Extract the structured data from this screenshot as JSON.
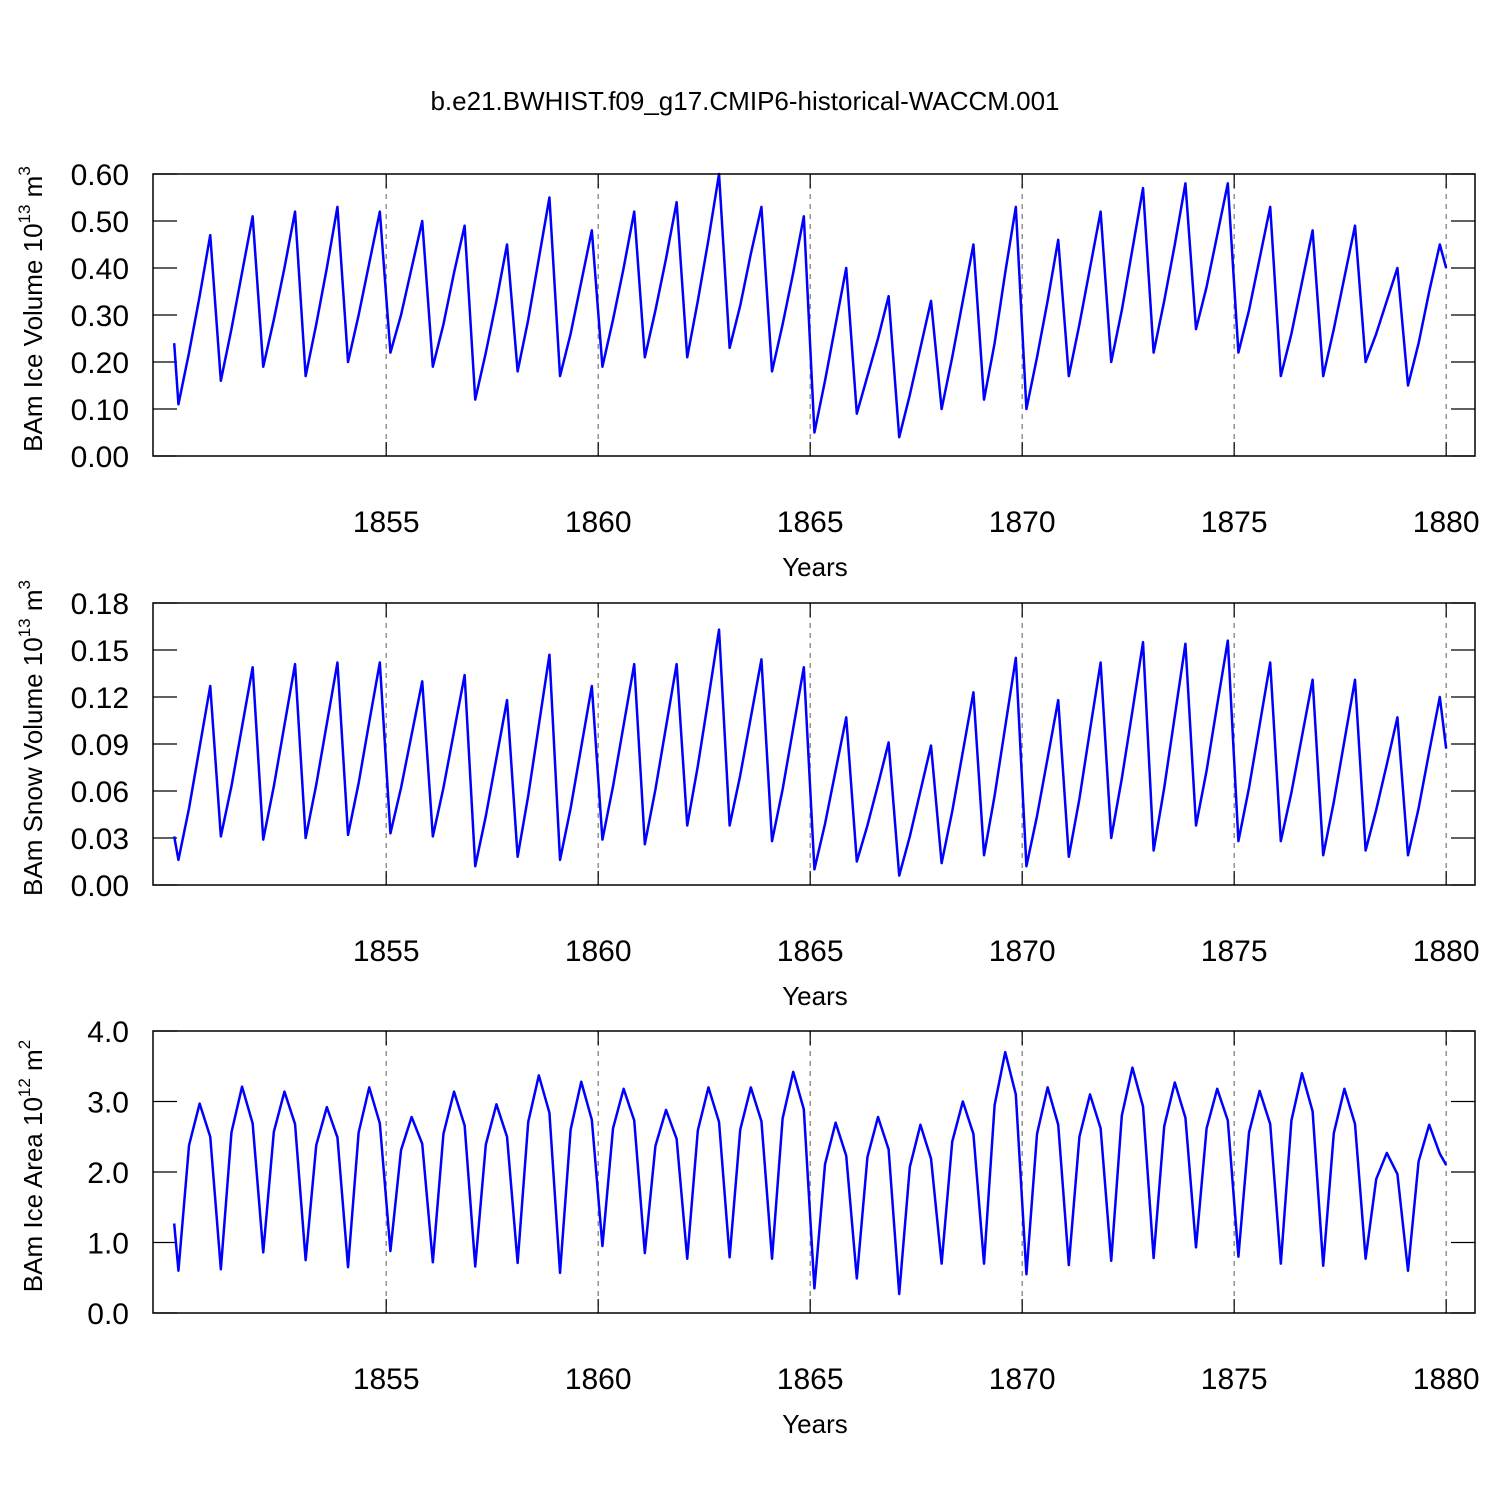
{
  "title": "b.e21.BWHIST.f09_g17.CMIP6-historical-WACCM.001",
  "chart_data": [
    {
      "type": "line",
      "ylabel": [
        "BAm Ice Volume 10",
        "13",
        " m",
        "3"
      ],
      "xlabel": "Years",
      "x": [
        1850,
        1850.1,
        1850.35,
        1850.6,
        1850.85,
        1851.1,
        1851.35,
        1851.6,
        1851.85,
        1852.1,
        1852.35,
        1852.6,
        1852.85,
        1853.1,
        1853.35,
        1853.6,
        1853.85,
        1854.1,
        1854.35,
        1854.6,
        1854.85,
        1855.1,
        1855.35,
        1855.6,
        1855.85,
        1856.1,
        1856.35,
        1856.6,
        1856.85,
        1857.1,
        1857.35,
        1857.6,
        1857.85,
        1858.1,
        1858.35,
        1858.6,
        1858.85,
        1859.1,
        1859.35,
        1859.6,
        1859.85,
        1860.1,
        1860.35,
        1860.6,
        1860.85,
        1861.1,
        1861.35,
        1861.6,
        1861.85,
        1862.1,
        1862.35,
        1862.6,
        1862.85,
        1863.1,
        1863.35,
        1863.6,
        1863.85,
        1864.1,
        1864.35,
        1864.6,
        1864.85,
        1865.1,
        1865.35,
        1865.6,
        1865.85,
        1866.1,
        1866.35,
        1866.6,
        1866.85,
        1867.1,
        1867.35,
        1867.6,
        1867.85,
        1868.1,
        1868.35,
        1868.6,
        1868.85,
        1869.1,
        1869.35,
        1869.6,
        1869.85,
        1870.1,
        1870.35,
        1870.6,
        1870.85,
        1871.1,
        1871.35,
        1871.6,
        1871.85,
        1872.1,
        1872.35,
        1872.6,
        1872.85,
        1873.1,
        1873.35,
        1873.6,
        1873.85,
        1874.1,
        1874.35,
        1874.6,
        1874.85,
        1875.1,
        1875.35,
        1875.6,
        1875.85,
        1876.1,
        1876.35,
        1876.6,
        1876.85,
        1877.1,
        1877.35,
        1877.6,
        1877.85,
        1878.1,
        1878.35,
        1878.6,
        1878.85,
        1879.1,
        1879.35,
        1879.6,
        1879.85,
        1880
      ],
      "series": [
        {
          "color": "#0000ff",
          "values": [
            0.24,
            0.11,
            0.22,
            0.34,
            0.47,
            0.16,
            0.27,
            0.39,
            0.51,
            0.19,
            0.29,
            0.4,
            0.52,
            0.17,
            0.28,
            0.4,
            0.53,
            0.2,
            0.3,
            0.41,
            0.52,
            0.22,
            0.3,
            0.4,
            0.5,
            0.19,
            0.28,
            0.39,
            0.49,
            0.12,
            0.22,
            0.33,
            0.45,
            0.18,
            0.29,
            0.42,
            0.55,
            0.17,
            0.26,
            0.37,
            0.48,
            0.19,
            0.29,
            0.4,
            0.52,
            0.21,
            0.31,
            0.42,
            0.54,
            0.21,
            0.33,
            0.46,
            0.6,
            0.23,
            0.32,
            0.43,
            0.53,
            0.18,
            0.28,
            0.39,
            0.51,
            0.05,
            0.16,
            0.28,
            0.4,
            0.09,
            0.17,
            0.25,
            0.34,
            0.04,
            0.13,
            0.23,
            0.33,
            0.1,
            0.21,
            0.33,
            0.45,
            0.12,
            0.24,
            0.39,
            0.53,
            0.1,
            0.21,
            0.33,
            0.46,
            0.17,
            0.28,
            0.4,
            0.52,
            0.2,
            0.31,
            0.44,
            0.57,
            0.22,
            0.33,
            0.45,
            0.58,
            0.27,
            0.36,
            0.47,
            0.58,
            0.22,
            0.31,
            0.42,
            0.53,
            0.17,
            0.26,
            0.37,
            0.48,
            0.17,
            0.27,
            0.38,
            0.49,
            0.2,
            0.26,
            0.33,
            0.4,
            0.15,
            0.24,
            0.35,
            0.45,
            0.4
          ]
        }
      ],
      "xlim": [
        1849.5,
        1880.68
      ],
      "xticks": [
        1855,
        1860,
        1865,
        1870,
        1875,
        1880
      ],
      "ylim": [
        0,
        0.6
      ],
      "yticks": [
        {
          "value": 0,
          "label": "0.00"
        },
        {
          "value": 0.1,
          "label": "0.10"
        },
        {
          "value": 0.2,
          "label": "0.20"
        },
        {
          "value": 0.3,
          "label": "0.30"
        },
        {
          "value": 0.4,
          "label": "0.40"
        },
        {
          "value": 0.5,
          "label": "0.50"
        },
        {
          "value": 0.6,
          "label": "0.60"
        }
      ],
      "grid": "x"
    },
    {
      "type": "line",
      "ylabel": [
        "BAm Snow Volume 10",
        "13",
        " m",
        "3"
      ],
      "xlabel": "Years",
      "x": [
        1850,
        1850.1,
        1850.35,
        1850.6,
        1850.85,
        1851.1,
        1851.35,
        1851.6,
        1851.85,
        1852.1,
        1852.35,
        1852.6,
        1852.85,
        1853.1,
        1853.35,
        1853.6,
        1853.85,
        1854.1,
        1854.35,
        1854.6,
        1854.85,
        1855.1,
        1855.35,
        1855.6,
        1855.85,
        1856.1,
        1856.35,
        1856.6,
        1856.85,
        1857.1,
        1857.35,
        1857.6,
        1857.85,
        1858.1,
        1858.35,
        1858.6,
        1858.85,
        1859.1,
        1859.35,
        1859.6,
        1859.85,
        1860.1,
        1860.35,
        1860.6,
        1860.85,
        1861.1,
        1861.35,
        1861.6,
        1861.85,
        1862.1,
        1862.35,
        1862.6,
        1862.85,
        1863.1,
        1863.35,
        1863.6,
        1863.85,
        1864.1,
        1864.35,
        1864.6,
        1864.85,
        1865.1,
        1865.35,
        1865.6,
        1865.85,
        1866.1,
        1866.35,
        1866.6,
        1866.85,
        1867.1,
        1867.35,
        1867.6,
        1867.85,
        1868.1,
        1868.35,
        1868.6,
        1868.85,
        1869.1,
        1869.35,
        1869.6,
        1869.85,
        1870.1,
        1870.35,
        1870.6,
        1870.85,
        1871.1,
        1871.35,
        1871.6,
        1871.85,
        1872.1,
        1872.35,
        1872.6,
        1872.85,
        1873.1,
        1873.35,
        1873.6,
        1873.85,
        1874.1,
        1874.35,
        1874.6,
        1874.85,
        1875.1,
        1875.35,
        1875.6,
        1875.85,
        1876.1,
        1876.35,
        1876.6,
        1876.85,
        1877.1,
        1877.35,
        1877.6,
        1877.85,
        1878.1,
        1878.35,
        1878.6,
        1878.85,
        1879.1,
        1879.35,
        1879.6,
        1879.85,
        1880
      ],
      "series": [
        {
          "color": "#0000ff",
          "values": [
            0.031,
            0.016,
            0.049,
            0.088,
            0.127,
            0.031,
            0.063,
            0.101,
            0.139,
            0.029,
            0.063,
            0.102,
            0.141,
            0.03,
            0.064,
            0.103,
            0.142,
            0.032,
            0.065,
            0.104,
            0.142,
            0.033,
            0.062,
            0.096,
            0.13,
            0.031,
            0.062,
            0.098,
            0.134,
            0.012,
            0.044,
            0.081,
            0.118,
            0.018,
            0.057,
            0.102,
            0.147,
            0.016,
            0.049,
            0.088,
            0.127,
            0.029,
            0.063,
            0.102,
            0.141,
            0.026,
            0.061,
            0.101,
            0.141,
            0.038,
            0.076,
            0.119,
            0.163,
            0.038,
            0.07,
            0.107,
            0.144,
            0.028,
            0.061,
            0.1,
            0.139,
            0.01,
            0.039,
            0.073,
            0.107,
            0.015,
            0.038,
            0.064,
            0.091,
            0.006,
            0.031,
            0.06,
            0.089,
            0.014,
            0.047,
            0.085,
            0.123,
            0.019,
            0.057,
            0.101,
            0.145,
            0.012,
            0.044,
            0.081,
            0.118,
            0.018,
            0.055,
            0.099,
            0.142,
            0.03,
            0.068,
            0.111,
            0.155,
            0.022,
            0.062,
            0.108,
            0.154,
            0.038,
            0.073,
            0.115,
            0.156,
            0.028,
            0.062,
            0.102,
            0.142,
            0.028,
            0.059,
            0.095,
            0.131,
            0.019,
            0.053,
            0.092,
            0.131,
            0.022,
            0.048,
            0.077,
            0.107,
            0.019,
            0.049,
            0.085,
            0.12,
            0.087
          ]
        }
      ],
      "xlim": [
        1849.5,
        1880.68
      ],
      "xticks": [
        1855,
        1860,
        1865,
        1870,
        1875,
        1880
      ],
      "ylim": [
        0,
        0.18
      ],
      "yticks": [
        {
          "value": 0,
          "label": "0.00"
        },
        0.03,
        0.06,
        0.09,
        0.12,
        0.15,
        0.18
      ],
      "grid": "x"
    },
    {
      "type": "line",
      "ylabel": [
        "BAm Ice Area 10",
        "12",
        " m",
        "2"
      ],
      "xlabel": "Years",
      "x": [
        1850,
        1850.1,
        1850.35,
        1850.6,
        1850.85,
        1851.1,
        1851.35,
        1851.6,
        1851.85,
        1852.1,
        1852.35,
        1852.6,
        1852.85,
        1853.1,
        1853.35,
        1853.6,
        1853.85,
        1854.1,
        1854.35,
        1854.6,
        1854.85,
        1855.1,
        1855.35,
        1855.6,
        1855.85,
        1856.1,
        1856.35,
        1856.6,
        1856.85,
        1857.1,
        1857.35,
        1857.6,
        1857.85,
        1858.1,
        1858.35,
        1858.6,
        1858.85,
        1859.1,
        1859.35,
        1859.6,
        1859.85,
        1860.1,
        1860.35,
        1860.6,
        1860.85,
        1861.1,
        1861.35,
        1861.6,
        1861.85,
        1862.1,
        1862.35,
        1862.6,
        1862.85,
        1863.1,
        1863.35,
        1863.6,
        1863.85,
        1864.1,
        1864.35,
        1864.6,
        1864.85,
        1865.1,
        1865.35,
        1865.6,
        1865.85,
        1866.1,
        1866.35,
        1866.6,
        1866.85,
        1867.1,
        1867.35,
        1867.6,
        1867.85,
        1868.1,
        1868.35,
        1868.6,
        1868.85,
        1869.1,
        1869.35,
        1869.6,
        1869.85,
        1870.1,
        1870.35,
        1870.6,
        1870.85,
        1871.1,
        1871.35,
        1871.6,
        1871.85,
        1872.1,
        1872.35,
        1872.6,
        1872.85,
        1873.1,
        1873.35,
        1873.6,
        1873.85,
        1874.1,
        1874.35,
        1874.6,
        1874.85,
        1875.1,
        1875.35,
        1875.6,
        1875.85,
        1876.1,
        1876.35,
        1876.6,
        1876.85,
        1877.1,
        1877.35,
        1877.6,
        1877.85,
        1878.1,
        1878.35,
        1878.6,
        1878.85,
        1879.1,
        1879.35,
        1879.6,
        1879.85,
        1880
      ],
      "series": [
        {
          "color": "#0000ff",
          "values": [
            1.27,
            0.6,
            2.38,
            2.97,
            2.5,
            0.62,
            2.56,
            3.21,
            2.69,
            0.86,
            2.57,
            3.14,
            2.68,
            0.75,
            2.38,
            2.92,
            2.49,
            0.65,
            2.56,
            3.2,
            2.69,
            0.88,
            2.31,
            2.78,
            2.4,
            0.72,
            2.54,
            3.14,
            2.66,
            0.66,
            2.39,
            2.96,
            2.5,
            0.71,
            2.71,
            3.37,
            2.84,
            0.57,
            2.6,
            3.28,
            2.74,
            0.95,
            2.62,
            3.18,
            2.73,
            0.85,
            2.37,
            2.88,
            2.47,
            0.77,
            2.59,
            3.2,
            2.71,
            0.79,
            2.6,
            3.2,
            2.72,
            0.77,
            2.76,
            3.42,
            2.89,
            0.35,
            2.11,
            2.7,
            2.23,
            0.49,
            2.21,
            2.78,
            2.32,
            0.27,
            2.07,
            2.67,
            2.19,
            0.7,
            2.43,
            3.0,
            2.54,
            0.7,
            2.95,
            3.7,
            3.1,
            0.55,
            2.54,
            3.2,
            2.67,
            0.68,
            2.5,
            3.1,
            2.62,
            0.74,
            2.8,
            3.48,
            2.93,
            0.78,
            2.65,
            3.27,
            2.77,
            0.93,
            2.62,
            3.18,
            2.73,
            0.8,
            2.56,
            3.15,
            2.68,
            0.7,
            2.73,
            3.4,
            2.86,
            0.67,
            2.55,
            3.18,
            2.68,
            0.77,
            1.9,
            2.27,
            1.97,
            0.6,
            2.15,
            2.67,
            2.26,
            2.1
          ]
        }
      ],
      "xlim": [
        1849.5,
        1880.68
      ],
      "xticks": [
        1855,
        1860,
        1865,
        1870,
        1875,
        1880
      ],
      "ylim": [
        0,
        4
      ],
      "yticks": [
        {
          "value": 0,
          "label": "0.0"
        },
        {
          "value": 1,
          "label": "1.0"
        },
        {
          "value": 2,
          "label": "2.0"
        },
        {
          "value": 3,
          "label": "3.0"
        },
        {
          "value": 4,
          "label": "4.0"
        }
      ],
      "grid": "x"
    }
  ]
}
